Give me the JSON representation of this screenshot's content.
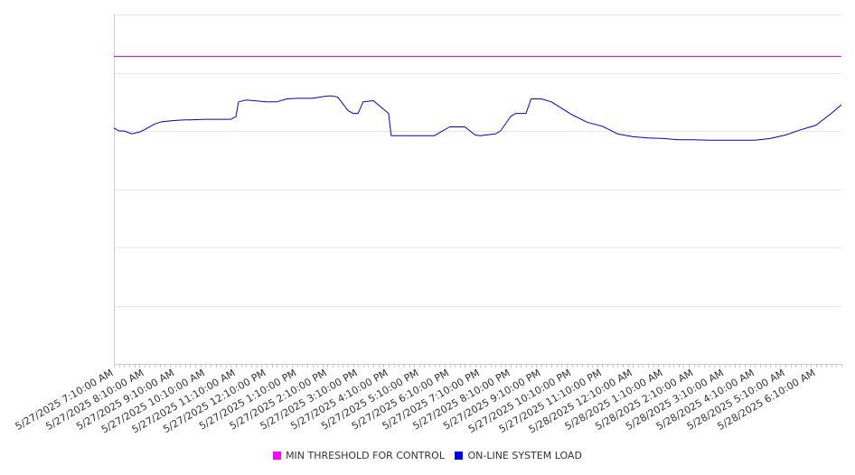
{
  "chart_data": {
    "type": "line",
    "title": "",
    "xlabel": "",
    "ylabel": "",
    "ylim": [
      0,
      6
    ],
    "y_ticks": [
      0,
      1,
      2,
      3,
      4,
      5,
      6
    ],
    "y_tick_labels_visible": false,
    "grid": "horizontal",
    "legend_position": "bottom-center",
    "x_range": [
      "5/27/2025 7:10:00 AM",
      "5/28/2025 7:00:00 AM"
    ],
    "x_tick_labels": [
      "5/27/2025 7:10:00 AM",
      "5/27/2025 8:10:00 AM",
      "5/27/2025 9:10:00 AM",
      "5/27/2025 10:10:00 AM",
      "5/27/2025 11:10:00 AM",
      "5/27/2025 12:10:00 PM",
      "5/27/2025 1:10:00 PM",
      "5/27/2025 2:10:00 PM",
      "5/27/2025 3:10:00 PM",
      "5/27/2025 4:10:00 PM",
      "5/27/2025 5:10:00 PM",
      "5/27/2025 6:10:00 PM",
      "5/27/2025 7:10:00 PM",
      "5/27/2025 8:10:00 PM",
      "5/27/2025 9:10:00 PM",
      "5/27/2025 10:10:00 PM",
      "5/27/2025 11:10:00 PM",
      "5/28/2025 12:10:00 AM",
      "5/28/2025 1:10:00 AM",
      "5/28/2025 2:10:00 AM",
      "5/28/2025 3:10:00 AM",
      "5/28/2025 4:10:00 AM",
      "5/28/2025 5:10:00 AM",
      "5/28/2025 6:10:00 AM"
    ],
    "series": [
      {
        "name": "MIN THRESHOLD FOR CONTROL",
        "color": "#cc00cc",
        "x": [
          "5/27/2025 7:10:00 AM",
          "5/28/2025 7:00:00 AM"
        ],
        "y": [
          5.28,
          5.28
        ]
      },
      {
        "name": "ON-LINE SYSTEM LOAD",
        "color": "#0000cc",
        "x": [
          "5/27/2025 7:10:00 AM",
          "5/27/2025 7:20:00 AM",
          "5/27/2025 7:30:00 AM",
          "5/27/2025 7:45:00 AM",
          "5/27/2025 8:00:00 AM",
          "5/27/2025 8:10:00 AM",
          "5/27/2025 8:30:00 AM",
          "5/27/2025 8:45:00 AM",
          "5/27/2025 9:10:00 AM",
          "5/27/2025 9:30:00 AM",
          "5/27/2025 9:40:00 AM",
          "5/27/2025 10:10:00 AM",
          "5/27/2025 10:40:00 AM",
          "5/27/2025 11:00:00 AM",
          "5/27/2025 11:10:00 AM",
          "5/27/2025 11:15:00 AM",
          "5/27/2025 11:30:00 AM",
          "5/27/2025 12:10:00 PM",
          "5/27/2025 12:30:00 PM",
          "5/27/2025 12:50:00 PM",
          "5/27/2025 1:10:00 PM",
          "5/27/2025 1:40:00 PM",
          "5/27/2025 2:10:00 PM",
          "5/27/2025 2:20:00 PM",
          "5/27/2025 2:30:00 PM",
          "5/27/2025 2:50:00 PM",
          "5/27/2025 3:00:00 PM",
          "5/27/2025 3:10:00 PM",
          "5/27/2025 3:20:00 PM",
          "5/27/2025 3:40:00 PM",
          "5/27/2025 4:10:00 PM",
          "5/27/2025 4:15:00 PM",
          "5/27/2025 4:30:00 PM",
          "5/27/2025 4:40:00 PM",
          "5/27/2025 5:10:00 PM",
          "5/27/2025 5:40:00 PM",
          "5/27/2025 6:10:00 PM",
          "5/27/2025 6:20:00 PM",
          "5/27/2025 6:40:00 PM",
          "5/27/2025 7:00:00 PM",
          "5/27/2025 7:10:00 PM",
          "5/27/2025 7:40:00 PM",
          "5/27/2025 7:50:00 PM",
          "5/27/2025 8:10:00 PM",
          "5/27/2025 8:20:00 PM",
          "5/27/2025 8:40:00 PM",
          "5/27/2025 8:50:00 PM",
          "5/27/2025 9:10:00 PM",
          "5/27/2025 9:30:00 PM",
          "5/27/2025 10:10:00 PM",
          "5/27/2025 10:40:00 PM",
          "5/27/2025 11:10:00 PM",
          "5/27/2025 11:40:00 PM",
          "5/28/2025 12:10:00 AM",
          "5/28/2025 12:40:00 AM",
          "5/28/2025 1:10:00 AM",
          "5/28/2025 1:40:00 AM",
          "5/28/2025 2:10:00 AM",
          "5/28/2025 2:40:00 AM",
          "5/28/2025 3:10:00 AM",
          "5/28/2025 3:40:00 AM",
          "5/28/2025 4:10:00 AM",
          "5/28/2025 4:40:00 AM",
          "5/28/2025 5:10:00 AM",
          "5/28/2025 5:40:00 AM",
          "5/28/2025 6:10:00 AM",
          "5/28/2025 6:40:00 AM",
          "5/28/2025 7:00:00 AM"
        ],
        "y": [
          4.05,
          4.0,
          4.0,
          3.95,
          3.98,
          4.02,
          4.12,
          4.16,
          4.18,
          4.19,
          4.19,
          4.2,
          4.2,
          4.2,
          4.25,
          4.5,
          4.53,
          4.5,
          4.5,
          4.55,
          4.56,
          4.56,
          4.6,
          4.6,
          4.58,
          4.35,
          4.3,
          4.3,
          4.5,
          4.52,
          4.3,
          3.92,
          3.92,
          3.92,
          3.92,
          3.92,
          4.07,
          4.07,
          4.07,
          3.93,
          3.92,
          3.95,
          4.0,
          4.25,
          4.3,
          4.3,
          4.55,
          4.55,
          4.5,
          4.28,
          4.15,
          4.08,
          3.95,
          3.9,
          3.88,
          3.87,
          3.85,
          3.85,
          3.84,
          3.84,
          3.84,
          3.84,
          3.87,
          3.93,
          4.02,
          4.1,
          4.3,
          4.45
        ]
      }
    ]
  }
}
